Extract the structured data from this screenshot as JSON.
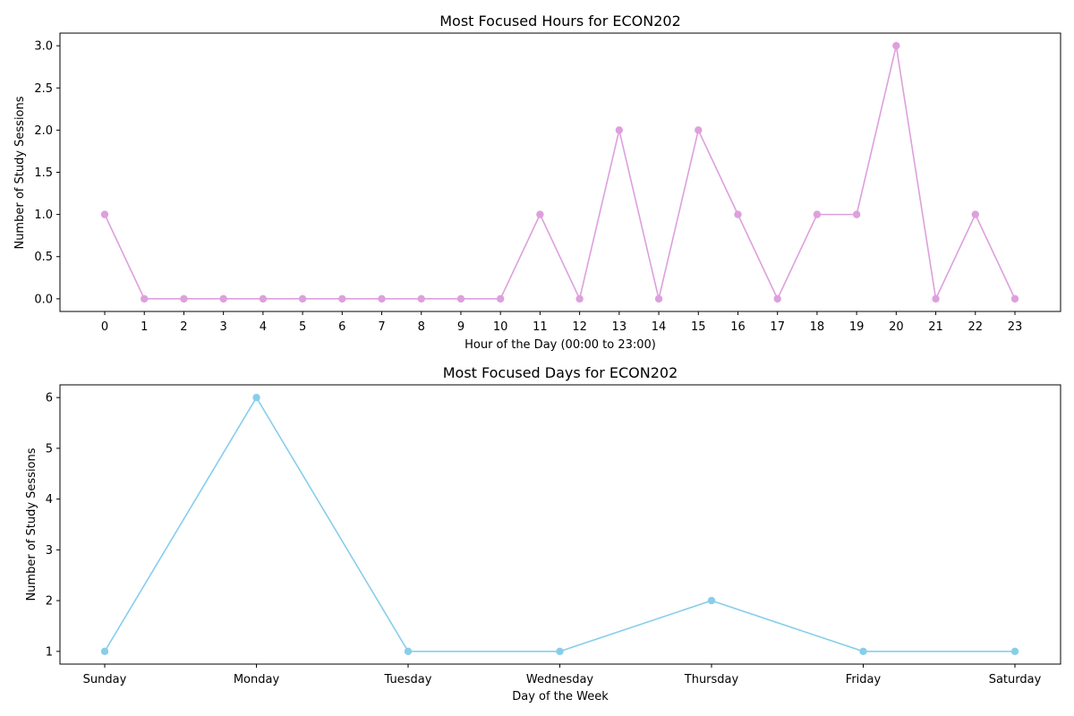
{
  "chart_data": [
    {
      "type": "line",
      "title": "Most Focused Hours for ECON202",
      "xlabel": "Hour of the Day (00:00 to 23:00)",
      "ylabel": "Number of Study Sessions",
      "categories": [
        "0",
        "1",
        "2",
        "3",
        "4",
        "5",
        "6",
        "7",
        "8",
        "9",
        "10",
        "11",
        "12",
        "13",
        "14",
        "15",
        "16",
        "17",
        "18",
        "19",
        "20",
        "21",
        "22",
        "23"
      ],
      "values": [
        1,
        0,
        0,
        0,
        0,
        0,
        0,
        0,
        0,
        0,
        0,
        1,
        0,
        2,
        0,
        2,
        1,
        0,
        1,
        1,
        3,
        0,
        1,
        0
      ],
      "yticks": [
        "0.0",
        "0.5",
        "1.0",
        "1.5",
        "2.0",
        "2.5",
        "3.0"
      ],
      "ylim": [
        -0.15,
        3.15
      ],
      "color": "#DDA0DD",
      "marker": "circle",
      "grid": false
    },
    {
      "type": "line",
      "title": "Most Focused Days for ECON202",
      "xlabel": "Day of the Week",
      "ylabel": "Number of Study Sessions",
      "categories": [
        "Sunday",
        "Monday",
        "Tuesday",
        "Wednesday",
        "Thursday",
        "Friday",
        "Saturday"
      ],
      "values": [
        1,
        6,
        1,
        1,
        2,
        1,
        1
      ],
      "yticks": [
        "1",
        "2",
        "3",
        "4",
        "5",
        "6"
      ],
      "ylim": [
        0.75,
        6.25
      ],
      "color": "#87CEEB",
      "marker": "circle",
      "grid": false
    }
  ]
}
